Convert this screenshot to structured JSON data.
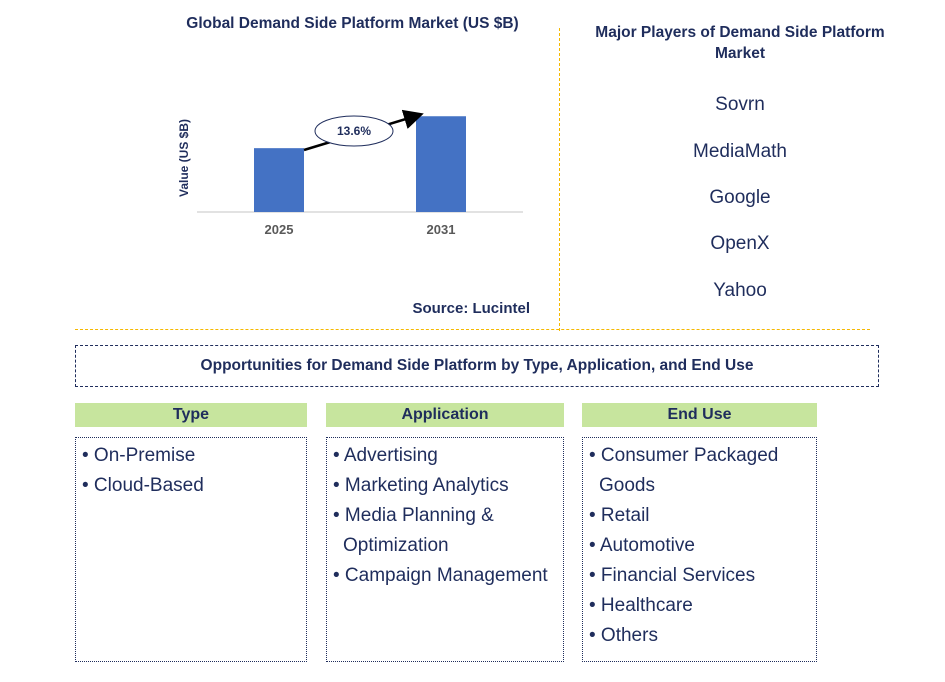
{
  "chart_title": "Global Demand Side Platform Market (US $B)",
  "source": "Source: Lucintel",
  "chart_data": {
    "type": "bar",
    "categories": [
      "2025",
      "2031"
    ],
    "values": [
      1.0,
      1.5
    ],
    "ylabel": "Value (US $B)",
    "annotation": "13.6%",
    "colors": {
      "bar": "#4472c4",
      "axis": "#d9d9d9",
      "text": "#595959"
    }
  },
  "players": {
    "title": "Major Players of Demand Side Platform Market",
    "items": [
      "Sovrn",
      "MediaMath",
      "Google",
      "OpenX",
      "Yahoo"
    ]
  },
  "opportunities": {
    "title": "Opportunities for Demand Side Platform by Type, Application, and End Use",
    "columns": [
      {
        "header": "Type",
        "items": [
          "On-Premise",
          "Cloud-Based"
        ]
      },
      {
        "header": "Application",
        "items": [
          "Advertising",
          "Marketing Analytics",
          "Media Planning & Optimization",
          "Campaign Management"
        ]
      },
      {
        "header": "End Use",
        "items": [
          "Consumer Packaged Goods",
          "Retail",
          "Automotive",
          "Financial Services",
          "Healthcare",
          "Others"
        ]
      }
    ]
  },
  "colors": {
    "heading": "#1f2d5c",
    "divider": "#f5b800",
    "column_header_bg": "#c7e59e"
  }
}
